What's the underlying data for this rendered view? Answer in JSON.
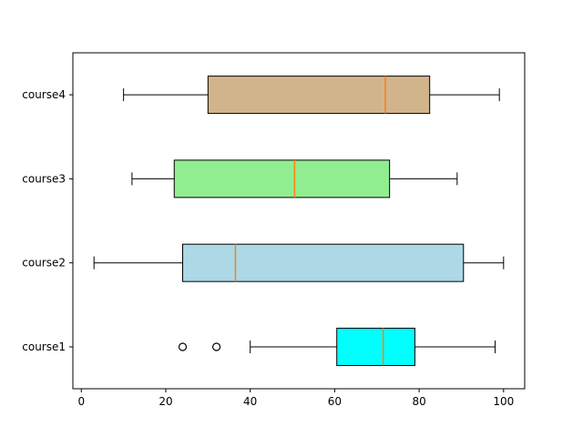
{
  "chart_data": {
    "type": "boxplot",
    "orientation": "horizontal",
    "title": "",
    "xlabel": "",
    "ylabel": "",
    "xlim": [
      -2,
      105
    ],
    "x_ticks": [
      0,
      20,
      40,
      60,
      80,
      100
    ],
    "grid": false,
    "categories": [
      "course1",
      "course2",
      "course3",
      "course4"
    ],
    "series": [
      {
        "category": "course1",
        "whisker_low": 40,
        "q1": 60.5,
        "median": 71.5,
        "q3": 79,
        "whisker_high": 98,
        "outliers": [
          24,
          32
        ],
        "color": "#00ffff"
      },
      {
        "category": "course2",
        "whisker_low": 3,
        "q1": 24,
        "median": 36.5,
        "q3": 90.5,
        "whisker_high": 100,
        "outliers": [],
        "color": "#add8e6"
      },
      {
        "category": "course3",
        "whisker_low": 12,
        "q1": 22,
        "median": 50.5,
        "q3": 73,
        "whisker_high": 89,
        "outliers": [],
        "color": "#90ee90"
      },
      {
        "category": "course4",
        "whisker_low": 10,
        "q1": 30,
        "median": 72,
        "q3": 82.5,
        "whisker_high": 99,
        "outliers": [],
        "color": "#d2b48c"
      }
    ],
    "median_color": "#ff7f0e"
  }
}
